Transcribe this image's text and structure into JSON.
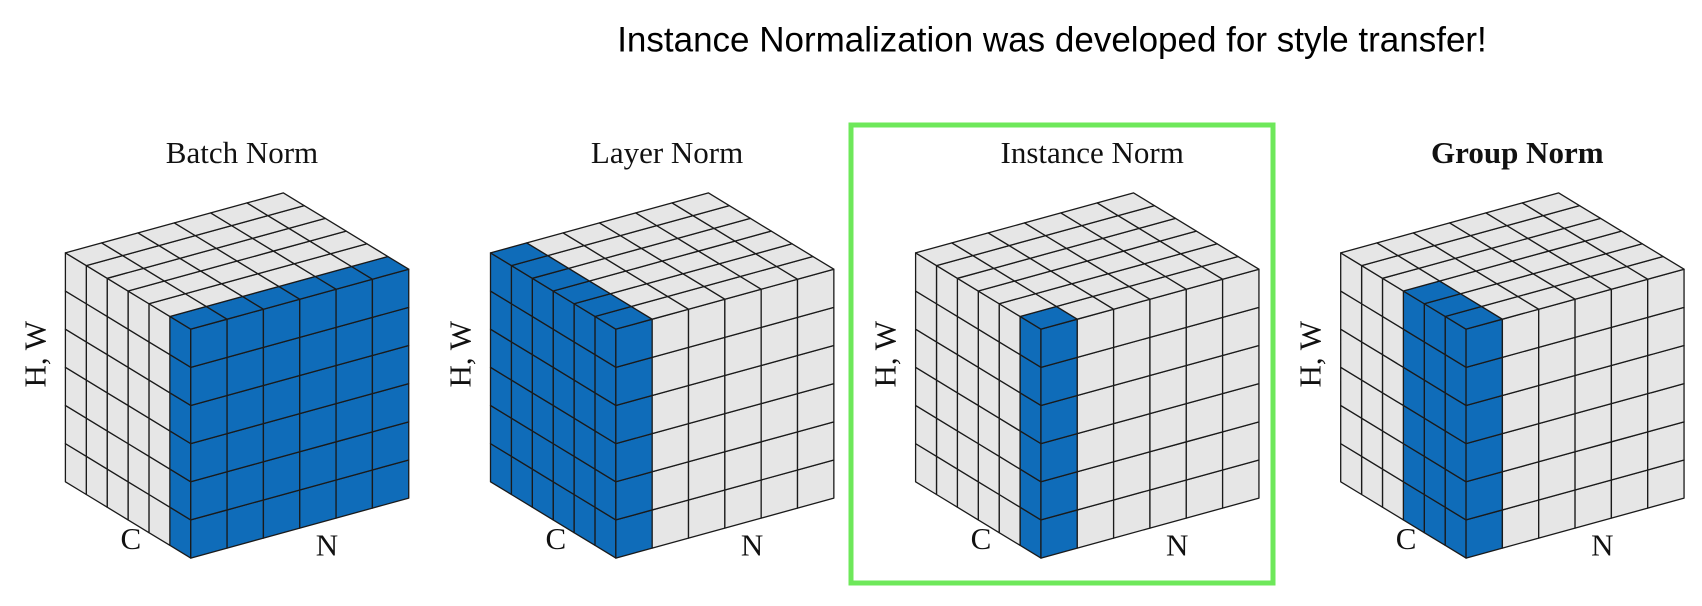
{
  "title": "Instance Normalization was developed for style transfer!",
  "panels": [
    {
      "title": "Batch Norm",
      "hw_label": "H, W",
      "c_label": "C",
      "n_label": "N"
    },
    {
      "title": "Layer Norm",
      "hw_label": "H, W",
      "c_label": "C",
      "n_label": "N"
    },
    {
      "title": "Instance Norm",
      "hw_label": "H, W",
      "c_label": "C",
      "n_label": "N"
    },
    {
      "title": "Group Norm",
      "hw_label": "H, W",
      "c_label": "C",
      "n_label": "N"
    }
  ]
}
